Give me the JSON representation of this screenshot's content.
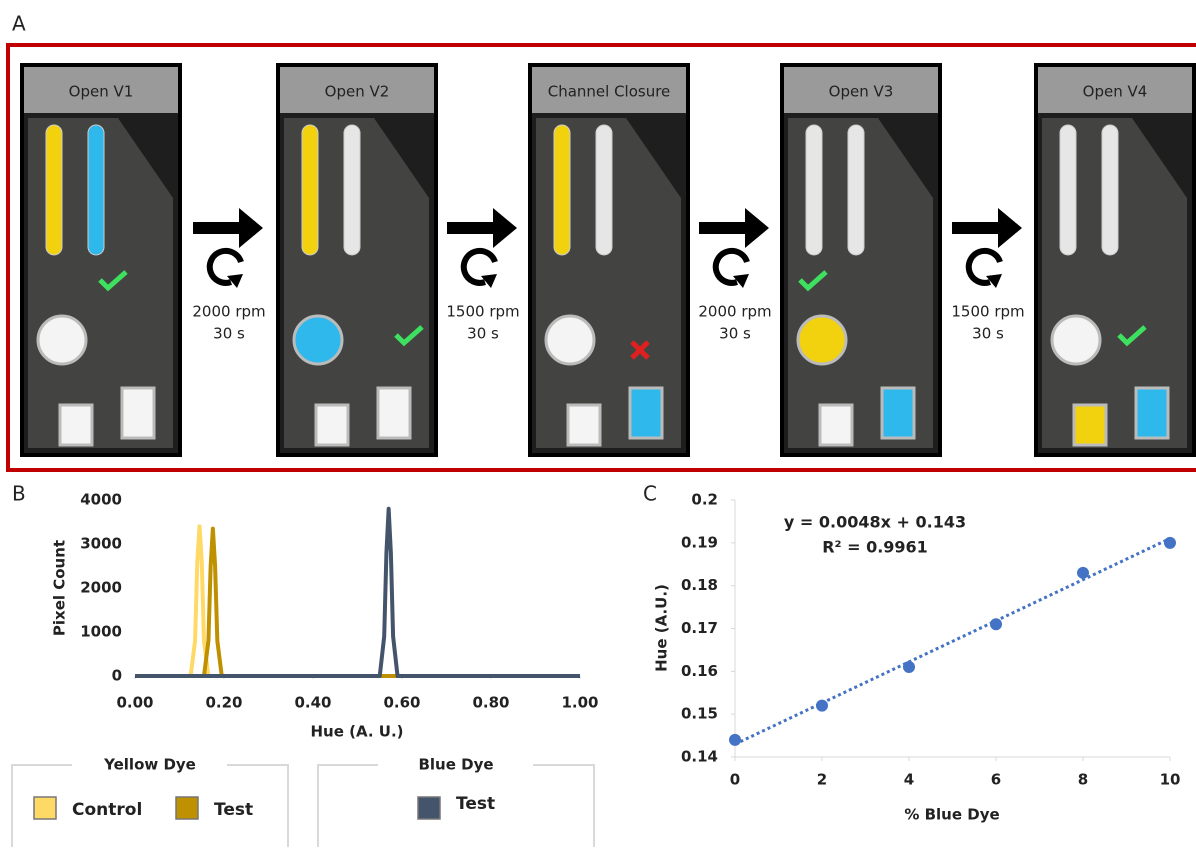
{
  "panel_a": {
    "label": "A",
    "steps": [
      "Open V1",
      "Open V2",
      "Channel Closure",
      "Open V3",
      "Open V4"
    ],
    "transitions": [
      {
        "speed": "2000 rpm",
        "time": "30 s"
      },
      {
        "speed": "1500 rpm",
        "time": "30 s"
      },
      {
        "speed": "2000 rpm",
        "time": "30 s"
      },
      {
        "speed": "1500 rpm",
        "time": "30 s"
      }
    ]
  },
  "chart_data": [
    {
      "type": "line",
      "panel": "B",
      "ylabel": "Pixel Count",
      "xlabel": "Hue (A. U.)",
      "xlim": [
        0,
        1
      ],
      "xticks": [
        {
          "value": 0,
          "label": "0.00"
        },
        {
          "value": 0.2,
          "label": "0.20"
        },
        {
          "value": 0.4,
          "label": "0.40"
        },
        {
          "value": 0.6,
          "label": "0.60"
        },
        {
          "value": 0.8,
          "label": "0.80"
        },
        {
          "value": 1,
          "label": "1.00"
        }
      ],
      "ylim": [
        0,
        4000
      ],
      "yticks": [
        0,
        1000,
        2000,
        3000,
        4000
      ],
      "series": [
        {
          "name": "Control",
          "group": "Yellow Dye",
          "color": "#ffd966",
          "x": [
            0,
            0.125,
            0.135,
            0.14,
            0.145,
            0.15,
            0.155,
            0.165,
            1
          ],
          "values": [
            0,
            0,
            800,
            2600,
            3400,
            2600,
            800,
            0,
            0
          ]
        },
        {
          "name": "Test",
          "group": "Yellow Dye",
          "color": "#bf9000",
          "x": [
            0,
            0.155,
            0.165,
            0.17,
            0.175,
            0.18,
            0.185,
            0.195,
            1
          ],
          "values": [
            0,
            0,
            800,
            2500,
            3350,
            2500,
            800,
            0,
            0
          ]
        },
        {
          "name": "Test",
          "group": "Blue Dye",
          "color": "#44546a",
          "x": [
            0,
            0.55,
            0.56,
            0.565,
            0.57,
            0.575,
            0.58,
            0.59,
            1
          ],
          "values": [
            0,
            0,
            900,
            2800,
            3800,
            2800,
            900,
            0,
            0
          ]
        }
      ]
    },
    {
      "type": "scatter",
      "panel": "C",
      "ylabel": "Hue (A.U.)",
      "xlabel": "% Blue Dye",
      "annotations": [
        "y = 0.0048x + 0.143",
        "R² = 0.9961"
      ],
      "trendline": {
        "slope": 0.0048,
        "intercept": 0.143
      },
      "xlim": [
        0,
        10
      ],
      "xticks": [
        0,
        2,
        4,
        6,
        8,
        10
      ],
      "ylim": [
        0.14,
        0.2
      ],
      "yticks": [
        0.14,
        0.15,
        0.16,
        0.17,
        0.18,
        0.19,
        0.2
      ],
      "color": "#4472c4",
      "x": [
        0,
        2,
        4,
        6,
        8,
        10
      ],
      "values": [
        0.144,
        0.152,
        0.161,
        0.171,
        0.183,
        0.19
      ]
    }
  ]
}
